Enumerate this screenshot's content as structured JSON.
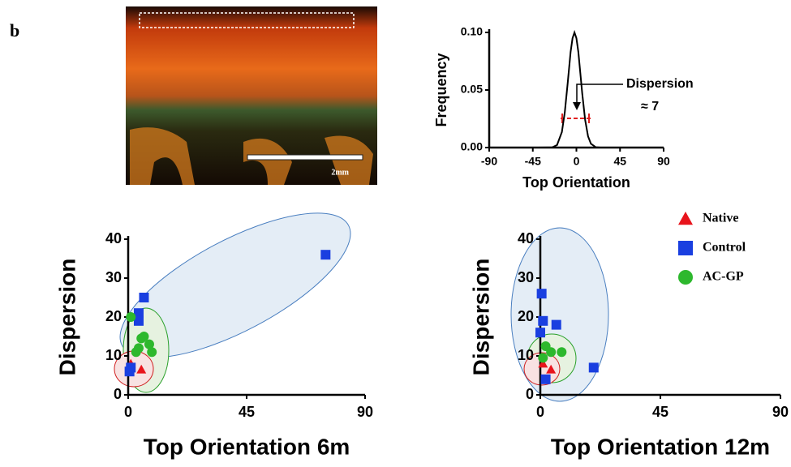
{
  "panel_label": "b",
  "image": {
    "scale_bar": "2mm"
  },
  "chart_data": [
    {
      "type": "line",
      "xlabel": "Top Orientation",
      "ylabel": "Frequency",
      "x": [
        -90,
        -40,
        -30,
        -25,
        -20,
        -15,
        -12,
        -9,
        -6,
        -4,
        -2,
        0,
        2,
        4,
        6,
        9,
        12,
        15,
        20,
        25,
        30,
        40,
        90
      ],
      "series": [
        {
          "color": "#000000",
          "values": [
            0,
            0,
            0.0001,
            0.0002,
            0.0022,
            0.0135,
            0.0306,
            0.056,
            0.083,
            0.095,
            0.1,
            0.095,
            0.083,
            0.065,
            0.047,
            0.024,
            0.0098,
            0.0033,
            0.0003,
            0,
            0,
            0,
            0
          ]
        }
      ],
      "xlim": [
        -90,
        90
      ],
      "xticks": [
        -90,
        -45,
        0,
        45,
        90
      ],
      "ylim": [
        0,
        0.1
      ],
      "yticks": [
        {
          "value": 0,
          "label": "0.00"
        },
        {
          "value": 0.05,
          "label": "0.05"
        },
        {
          "value": 0.1,
          "label": "0.10"
        }
      ],
      "annotations": [
        "Dispersion",
        "≈ 7"
      ]
    },
    {
      "type": "scatter",
      "xlabel": "Top Orientation 6m",
      "ylabel": "Dispersion",
      "xlim": [
        0,
        90
      ],
      "xticks": [
        0,
        45,
        90
      ],
      "ylim": [
        0,
        40
      ],
      "yticks": [
        0,
        10,
        20,
        30,
        40
      ],
      "series": [
        {
          "name": "Native",
          "color": "#e8141c",
          "marker": "triangle",
          "x": [
            1,
            5
          ],
          "values": [
            8,
            6.5
          ]
        },
        {
          "name": "Control",
          "color": "#1a3fe0",
          "marker": "square",
          "x": [
            75,
            6,
            4,
            4,
            1,
            0.5
          ],
          "values": [
            36,
            25,
            21,
            19,
            7,
            6
          ]
        },
        {
          "name": "AC-GP",
          "color": "#2db82d",
          "marker": "circle",
          "x": [
            1,
            6,
            5,
            8,
            4,
            3,
            9
          ],
          "values": [
            20,
            15,
            14.5,
            13,
            12,
            11,
            11
          ]
        }
      ]
    },
    {
      "type": "scatter",
      "xlabel": "Top Orientation 12m",
      "ylabel": "Dispersion",
      "xlim": [
        0,
        90
      ],
      "xticks": [
        0,
        45,
        90
      ],
      "ylim": [
        0,
        40
      ],
      "yticks": [
        0,
        10,
        20,
        30,
        40
      ],
      "series": [
        {
          "color": "#e8141c",
          "marker": "triangle",
          "x": [
            1,
            4
          ],
          "values": [
            8,
            6.5
          ]
        },
        {
          "color": "#1a3fe0",
          "marker": "square",
          "x": [
            0.5,
            1,
            0,
            6,
            20,
            2
          ],
          "values": [
            26,
            19,
            16,
            18,
            7,
            4
          ]
        },
        {
          "color": "#2db82d",
          "marker": "circle",
          "x": [
            2,
            4,
            8,
            1
          ],
          "values": [
            12.5,
            11,
            11,
            9.5
          ]
        }
      ]
    }
  ]
}
